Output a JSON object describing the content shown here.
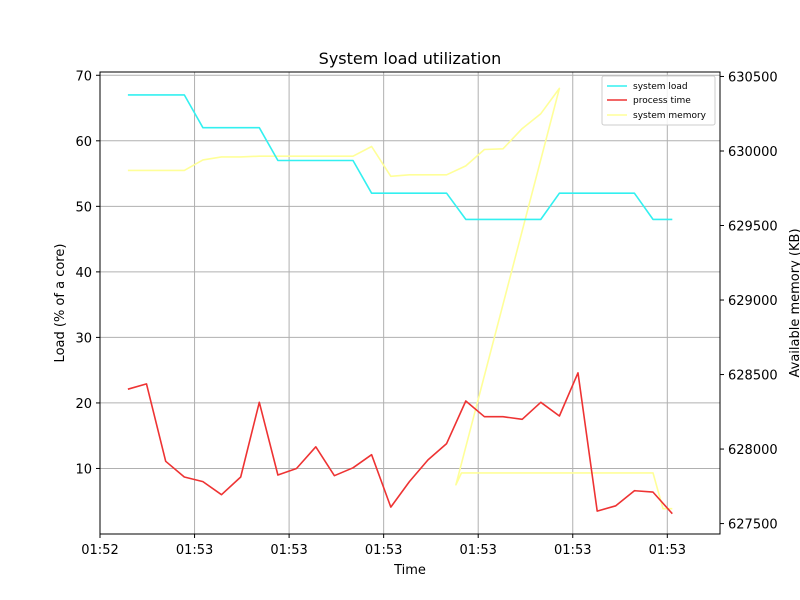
{
  "chart_data": {
    "type": "line",
    "title": "System load utilization",
    "xlabel": "Time",
    "ylabel": "Load (% of a core)",
    "y2label": "Available memory (KB)",
    "grid": true,
    "legend_position": "top-right",
    "x_tick_labels": [
      "01:52",
      "01:53",
      "01:53",
      "01:53",
      "01:53",
      "01:53",
      "01:53"
    ],
    "yticks": [
      "10",
      "20",
      "30",
      "40",
      "50",
      "60",
      "70"
    ],
    "y2ticks": [
      "627500",
      "628000",
      "628500",
      "629000",
      "629500",
      "630000",
      "630500"
    ],
    "ylim": [
      0,
      70.5
    ],
    "y2lim": [
      627430,
      630530
    ],
    "xlim": [
      0,
      1
    ],
    "x": [
      0.045,
      0.075,
      0.106,
      0.136,
      0.166,
      0.196,
      0.227,
      0.257,
      0.287,
      0.317,
      0.348,
      0.378,
      0.408,
      0.438,
      0.469,
      0.499,
      0.529,
      0.559,
      0.59,
      0.62,
      0.65,
      0.681,
      0.711,
      0.741,
      0.771,
      0.802,
      0.832,
      0.862,
      0.892,
      0.923
    ],
    "series": [
      {
        "name": "system load",
        "color": "#33f0f0",
        "axis": "left",
        "values": [
          67,
          67,
          67,
          67,
          62,
          62,
          62,
          62,
          57,
          57,
          57,
          57,
          57,
          52,
          52,
          52,
          52,
          52,
          48,
          48,
          48,
          48,
          48,
          52,
          52,
          52,
          52,
          52,
          48,
          48
        ]
      },
      {
        "name": "process time",
        "color": "#ee3333",
        "axis": "left",
        "values": [
          22.1,
          22.9,
          11.1,
          8.7,
          8.0,
          6.0,
          8.7,
          20.1,
          9.0,
          10.0,
          13.3,
          8.9,
          10.1,
          12.1,
          4.1,
          8.0,
          11.3,
          13.8,
          20.3,
          17.9,
          17.9,
          17.5,
          20.1,
          18.0,
          24.6,
          3.5,
          4.3,
          6.6,
          6.4,
          3.1
        ]
      },
      {
        "name": "system memory",
        "color": "#ffff99",
        "axis": "right",
        "values": [
          629870,
          629870,
          629870,
          629870,
          629940,
          629960,
          629960,
          629965,
          629965,
          629965,
          629965,
          629965,
          629965,
          630030,
          629830,
          629840,
          629840,
          629840,
          629900,
          630010,
          630015,
          630150,
          630250,
          630420,
          627760,
          627840,
          627840,
          627840,
          627840,
          627590
        ]
      }
    ],
    "memory_extra": {
      "note_x": [
        0.574,
        0.583,
        0.613,
        0.892,
        0.908,
        0.923
      ],
      "note_values": [
        627760,
        627840,
        627840,
        627840,
        627600,
        627600
      ]
    }
  }
}
